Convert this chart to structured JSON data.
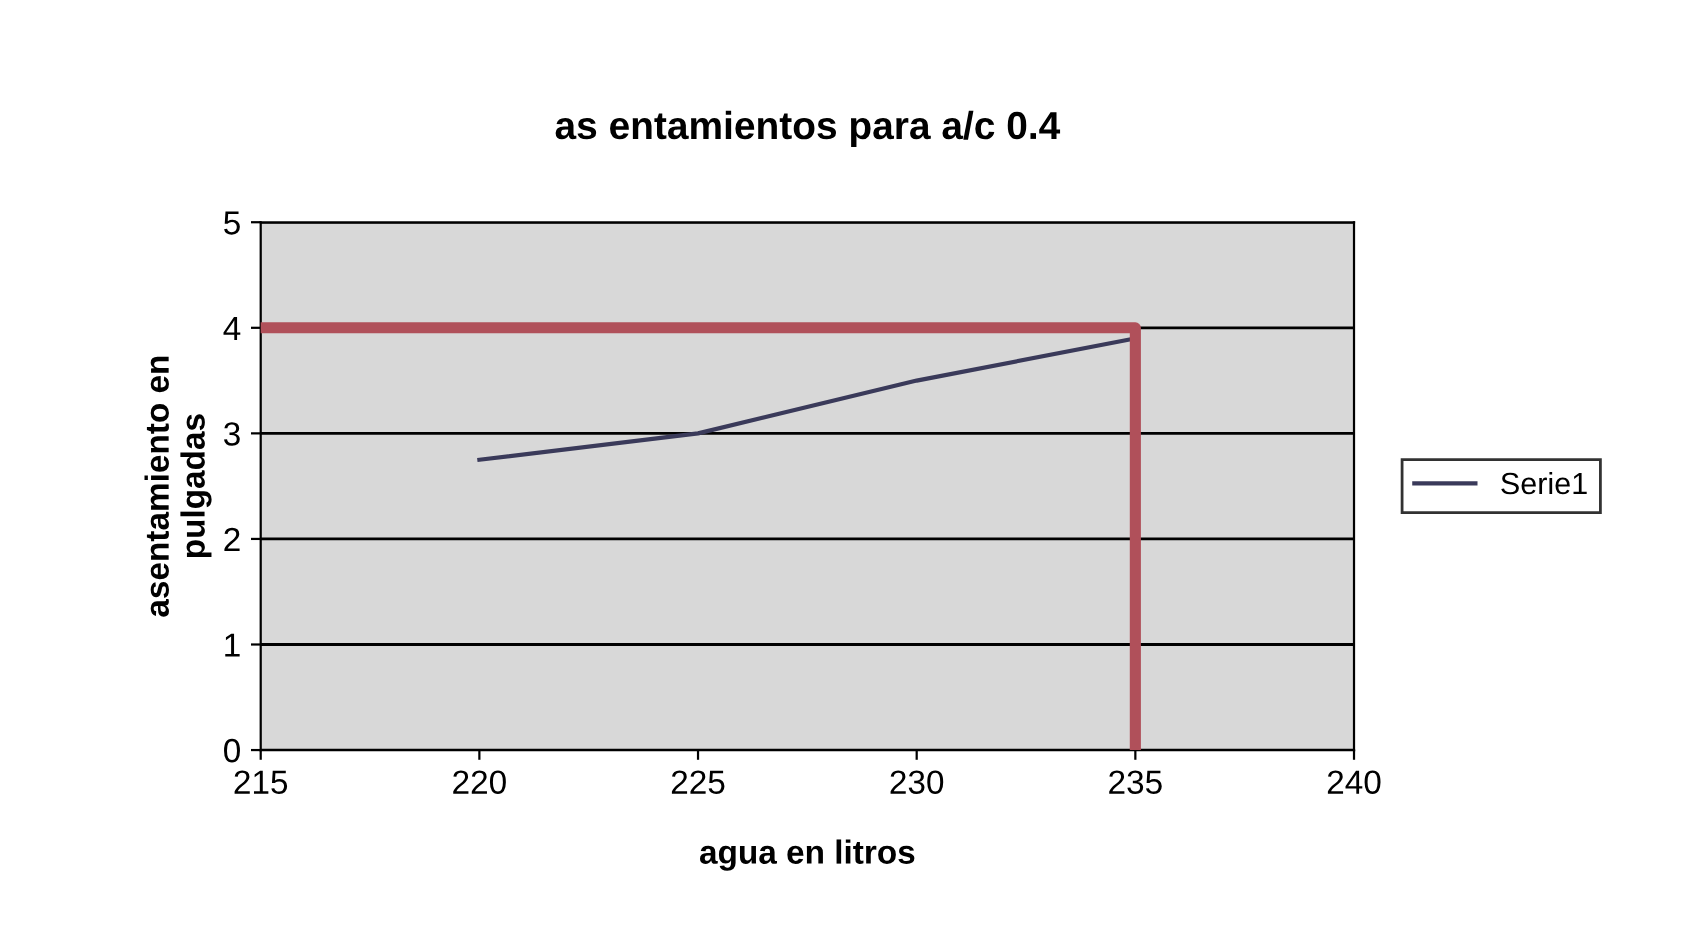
{
  "chart_data": {
    "type": "line",
    "title": "as entamientos para a/c 0.4",
    "xlabel": "agua en litros",
    "ylabel": "asentamiento en\npulgadas",
    "series": [
      {
        "name": "Serie1",
        "color": "#3a3a5a",
        "x": [
          220,
          225,
          230,
          235
        ],
        "values": [
          2.75,
          3.0,
          3.5,
          3.9
        ]
      },
      {
        "color": "#b0505a",
        "x": [
          215,
          235,
          235
        ],
        "values": [
          4,
          4,
          0
        ]
      }
    ],
    "xlim": [
      215,
      240
    ],
    "xticks": [
      215,
      220,
      225,
      230,
      235,
      240
    ],
    "ylim": [
      0,
      5
    ],
    "yticks": [
      0,
      1,
      2,
      3,
      4,
      5
    ],
    "grid": "y",
    "legend": "right",
    "marker": "none",
    "line_style": "solid"
  }
}
